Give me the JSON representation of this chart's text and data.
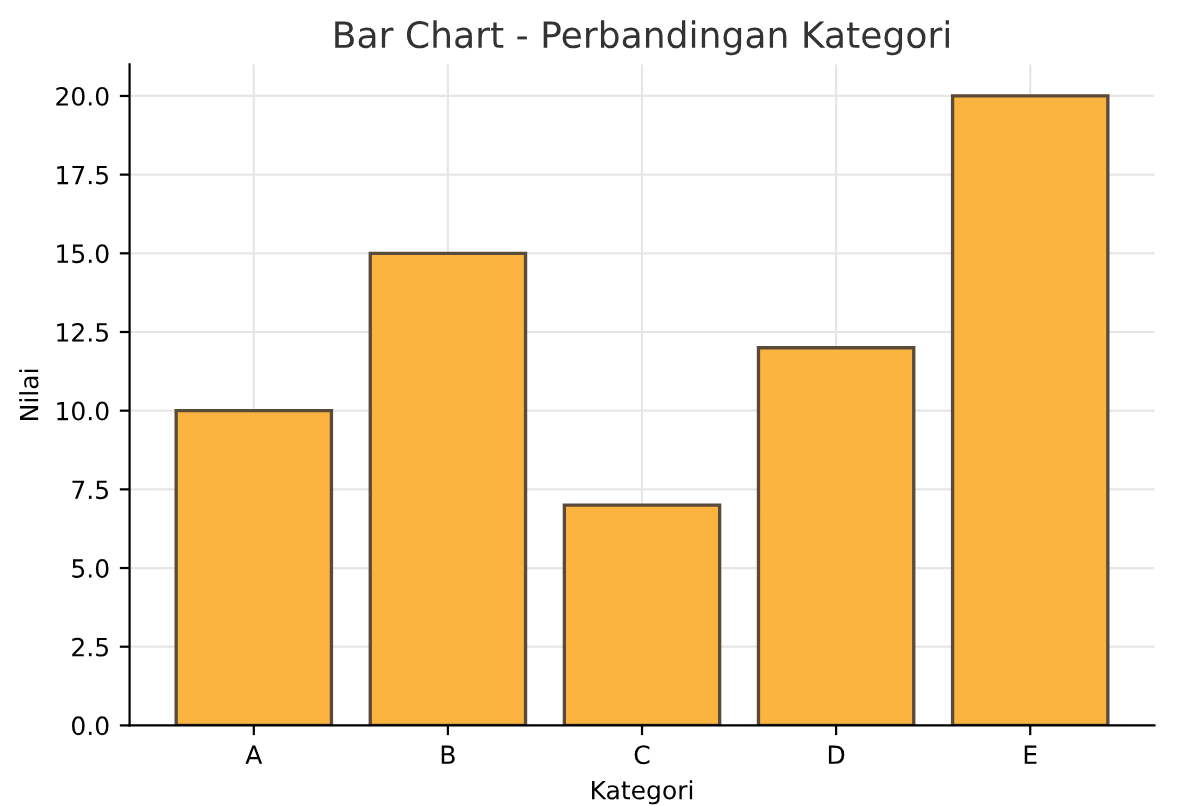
{
  "chart_data": {
    "type": "bar",
    "title": "Bar Chart - Perbandingan Kategori",
    "xlabel": "Kategori",
    "ylabel": "Nilai",
    "categories": [
      "A",
      "B",
      "C",
      "D",
      "E"
    ],
    "values": [
      10,
      15,
      7,
      12,
      20
    ],
    "color": "#fbb440",
    "ylim": [
      0,
      21
    ],
    "yticks": [
      {
        "value": 0,
        "label": "0.0"
      },
      {
        "value": 2.5,
        "label": "2.5"
      },
      {
        "value": 5,
        "label": "5.0"
      },
      {
        "value": 7.5,
        "label": "7.5"
      },
      {
        "value": 10,
        "label": "10.0"
      },
      {
        "value": 12.5,
        "label": "12.5"
      },
      {
        "value": 15,
        "label": "15.0"
      },
      {
        "value": 17.5,
        "label": "17.5"
      },
      {
        "value": 20,
        "label": "20.0"
      }
    ],
    "grid": true
  }
}
